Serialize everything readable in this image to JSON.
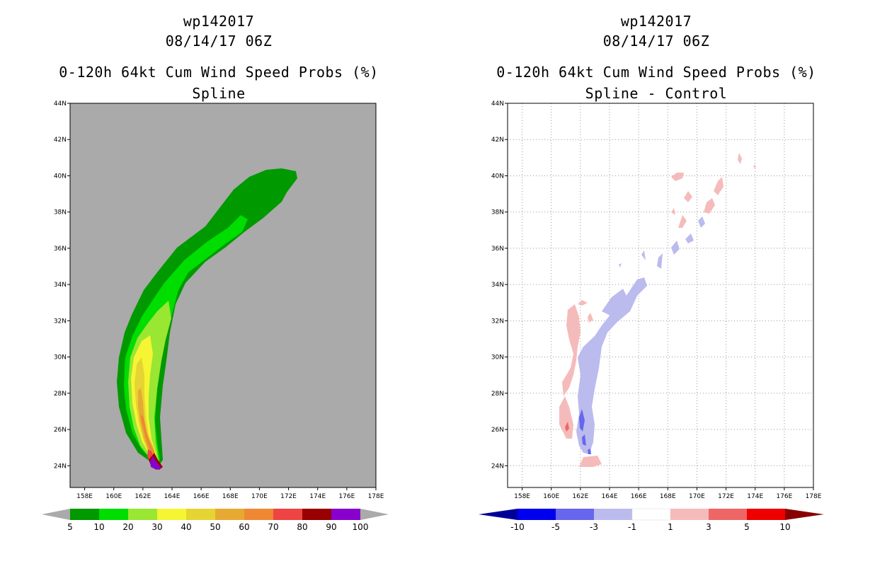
{
  "chart_data": [
    {
      "type": "heatmap",
      "storm_id": "wp142017",
      "datetime": "08/14/17 06Z",
      "title": "0-120h 64kt Cum Wind Speed Probs (%)",
      "subtitle": "Spline",
      "xlabel": "",
      "ylabel": "",
      "xlim": [
        157,
        178
      ],
      "ylim": [
        22.8,
        44
      ],
      "grid": false,
      "x_ticks": [
        "158E",
        "160E",
        "162E",
        "164E",
        "166E",
        "168E",
        "170E",
        "172E",
        "174E",
        "176E",
        "178E"
      ],
      "y_ticks": [
        "24N",
        "26N",
        "28N",
        "30N",
        "32N",
        "34N",
        "36N",
        "38N",
        "40N",
        "42N",
        "44N"
      ],
      "colorbar": {
        "labels": [
          "5",
          "10",
          "20",
          "30",
          "40",
          "50",
          "60",
          "70",
          "80",
          "90",
          "100"
        ],
        "colors": [
          "#009900",
          "#00dd00",
          "#99e633",
          "#f5f533",
          "#e6d433",
          "#e6aa33",
          "#ee8833",
          "#ee4444",
          "#990000",
          "#8800cc"
        ],
        "under_color": "#aaaaaa",
        "over_color": "#aaaaaa"
      },
      "background_color": "#aaaaaa"
    },
    {
      "type": "heatmap",
      "storm_id": "wp142017",
      "datetime": "08/14/17 06Z",
      "title": "0-120h 64kt Cum Wind Speed Probs (%)",
      "subtitle": "Spline - Control",
      "xlabel": "",
      "ylabel": "",
      "xlim": [
        157,
        178
      ],
      "ylim": [
        22.8,
        44
      ],
      "grid": true,
      "x_ticks": [
        "158E",
        "160E",
        "162E",
        "164E",
        "166E",
        "168E",
        "170E",
        "172E",
        "174E",
        "176E",
        "178E"
      ],
      "y_ticks": [
        "24N",
        "26N",
        "28N",
        "30N",
        "32N",
        "34N",
        "36N",
        "38N",
        "40N",
        "42N",
        "44N"
      ],
      "colorbar": {
        "labels": [
          "-10",
          "-5",
          "-3",
          "-1",
          "1",
          "3",
          "5",
          "10"
        ],
        "colors": [
          "#0000ee",
          "#6666ee",
          "#bbbbee",
          "#ffffff",
          "#f5bbbb",
          "#ee6666",
          "#ee0000"
        ],
        "under_color": "#000099",
        "over_color": "#880000"
      },
      "background_color": "#ffffff"
    }
  ]
}
